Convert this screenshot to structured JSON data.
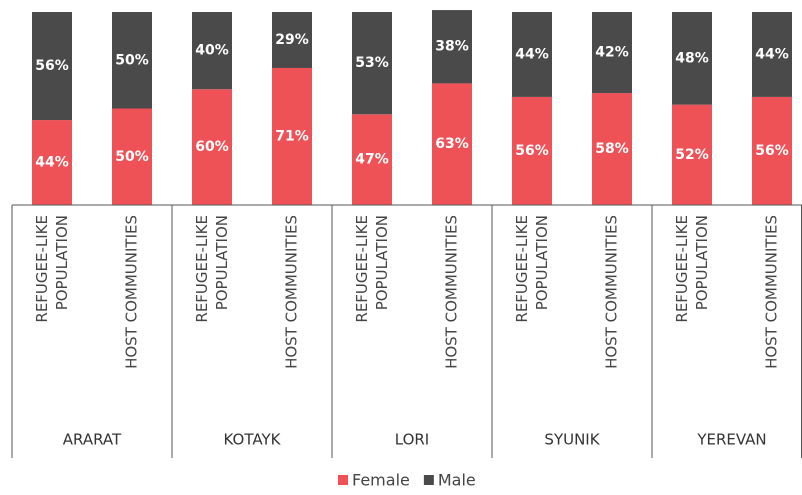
{
  "chart_data": {
    "type": "stacked_bar",
    "groups": [
      {
        "name": "ARARAT",
        "categories": [
          "REFUGEE-LIKE POPULATION",
          "HOST COMMUNITIES"
        ]
      },
      {
        "name": "KOTAYK",
        "categories": [
          "REFUGEE-LIKE POPULATION",
          "HOST COMMUNITIES"
        ]
      },
      {
        "name": "LORI",
        "categories": [
          "REFUGEE-LIKE POPULATION",
          "HOST COMMUNITIES"
        ]
      },
      {
        "name": "SYUNIK",
        "categories": [
          "REFUGEE-LIKE POPULATION",
          "HOST COMMUNITIES"
        ]
      },
      {
        "name": "YEREVAN",
        "categories": [
          "REFUGEE-LIKE POPULATION",
          "HOST COMMUNITIES"
        ]
      }
    ],
    "series": [
      {
        "name": "Female",
        "color": "#ee5257",
        "values": [
          44,
          50,
          60,
          71,
          47,
          63,
          56,
          58,
          52,
          56
        ],
        "value_labels": [
          "44%",
          "50%",
          "60%",
          "71%",
          "47%",
          "63%",
          "56%",
          "58%",
          "52%",
          "56%"
        ]
      },
      {
        "name": "Male",
        "color": "#4a4a4a",
        "values": [
          56,
          50,
          40,
          29,
          53,
          38,
          44,
          42,
          48,
          44
        ],
        "value_labels": [
          "56%",
          "50%",
          "40%",
          "29%",
          "53%",
          "38%",
          "44%",
          "42%",
          "48%",
          "44%"
        ]
      }
    ],
    "ylim": [
      0,
      100
    ],
    "legend": "bottom"
  }
}
